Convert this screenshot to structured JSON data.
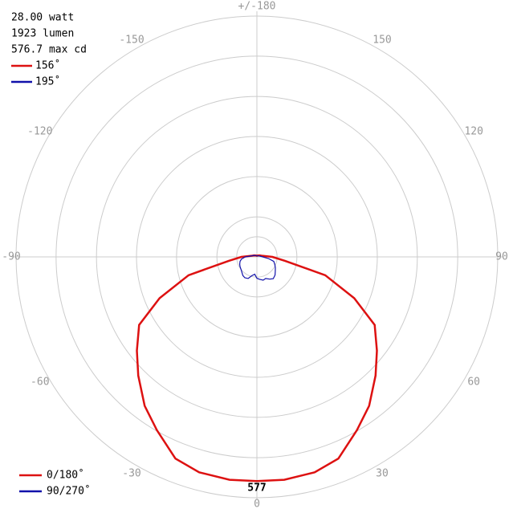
{
  "chart_data": {
    "type": "polar",
    "info": [
      "28.00 watt",
      "1923 lumen",
      "576.7 max cd"
    ],
    "cone_legend": [
      {
        "name": "156˚",
        "color": "#dd1111"
      },
      {
        "name": "195˚",
        "color": "#1111aa"
      }
    ],
    "x": [
      -180,
      -165,
      -150,
      -135,
      -120,
      -105,
      -90,
      -82,
      -75,
      -67,
      -60,
      -52,
      -45,
      -37,
      -30,
      -22,
      -15,
      -7,
      0,
      7,
      15,
      22,
      30,
      37,
      45,
      52,
      60,
      67,
      75,
      82,
      90,
      105,
      120,
      135,
      150,
      165,
      180
    ],
    "series": [
      {
        "name": "0/180˚",
        "color": "#dd1111",
        "values": [
          3,
          3,
          4,
          5,
          8,
          12,
          40,
          73,
          182,
          272,
          350,
          392,
          432,
          480,
          515,
          560,
          574,
          578,
          577,
          578,
          574,
          560,
          515,
          480,
          432,
          392,
          350,
          272,
          182,
          73,
          40,
          12,
          8,
          5,
          4,
          3,
          3
        ]
      },
      {
        "name": "90/270˚",
        "color": "#1111aa",
        "values": [
          3,
          3,
          4,
          5,
          8,
          12,
          30,
          40,
          45,
          48,
          50,
          52,
          55,
          60,
          62,
          60,
          50,
          45,
          55,
          58,
          62,
          60,
          66,
          70,
          66,
          60,
          55,
          50,
          45,
          30,
          15,
          8,
          5,
          4,
          3,
          3,
          3
        ]
      }
    ],
    "rlim": [
      0,
      620
    ],
    "rticks": [
      52,
      103,
      207,
      310,
      413,
      517,
      620
    ],
    "xticks": [
      {
        "value": 180,
        "label": "+/-180"
      },
      -150,
      150,
      -120,
      120,
      -90,
      90,
      -60,
      60,
      -30,
      30,
      0
    ],
    "max_index": 18
  }
}
